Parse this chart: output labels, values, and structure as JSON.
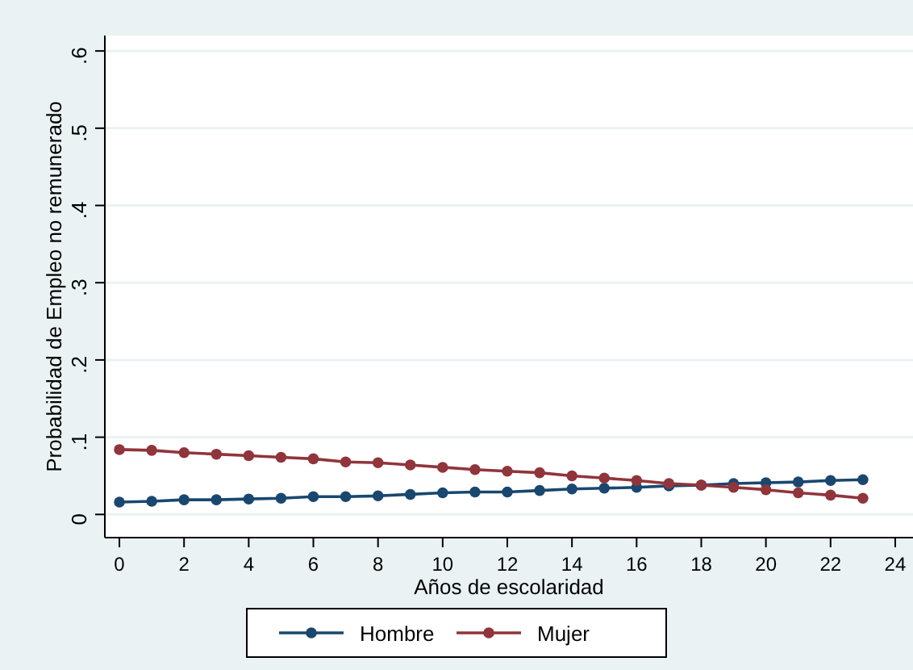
{
  "chart_data": {
    "type": "line",
    "xlabel": "Años de escolaridad",
    "ylabel": "Probabilidad de Empleo no remunerado",
    "x": [
      0,
      1,
      2,
      3,
      4,
      5,
      6,
      7,
      8,
      9,
      10,
      11,
      12,
      13,
      14,
      15,
      16,
      17,
      18,
      19,
      20,
      21,
      22,
      23
    ],
    "series": [
      {
        "name": "Hombre",
        "color": "#1a476f",
        "values": [
          0.016,
          0.017,
          0.019,
          0.019,
          0.02,
          0.021,
          0.023,
          0.023,
          0.024,
          0.026,
          0.028,
          0.029,
          0.029,
          0.031,
          0.033,
          0.034,
          0.035,
          0.037,
          0.038,
          0.04,
          0.041,
          0.042,
          0.044,
          0.045
        ]
      },
      {
        "name": "Mujer",
        "color": "#90353b",
        "values": [
          0.084,
          0.083,
          0.08,
          0.078,
          0.076,
          0.074,
          0.072,
          0.068,
          0.067,
          0.064,
          0.061,
          0.058,
          0.056,
          0.054,
          0.05,
          0.047,
          0.044,
          0.04,
          0.038,
          0.035,
          0.032,
          0.028,
          0.025,
          0.021
        ]
      }
    ],
    "xlim": [
      -0.45,
      24.55
    ],
    "xticks": [
      0,
      2,
      4,
      6,
      8,
      10,
      12,
      14,
      16,
      18,
      20,
      22,
      24
    ],
    "ylim": [
      -0.03,
      0.62
    ],
    "yticks": [
      {
        "value": 0,
        "label": "0"
      },
      {
        "value": 0.1,
        "label": ".1"
      },
      {
        "value": 0.2,
        "label": ".2"
      },
      {
        "value": 0.3,
        "label": ".3"
      },
      {
        "value": 0.4,
        "label": ".4"
      },
      {
        "value": 0.5,
        "label": ".5"
      },
      {
        "value": 0.6,
        "label": ".6"
      }
    ],
    "grid": "y",
    "legend": "bottom",
    "marker": "circle",
    "line_style": "solid"
  }
}
